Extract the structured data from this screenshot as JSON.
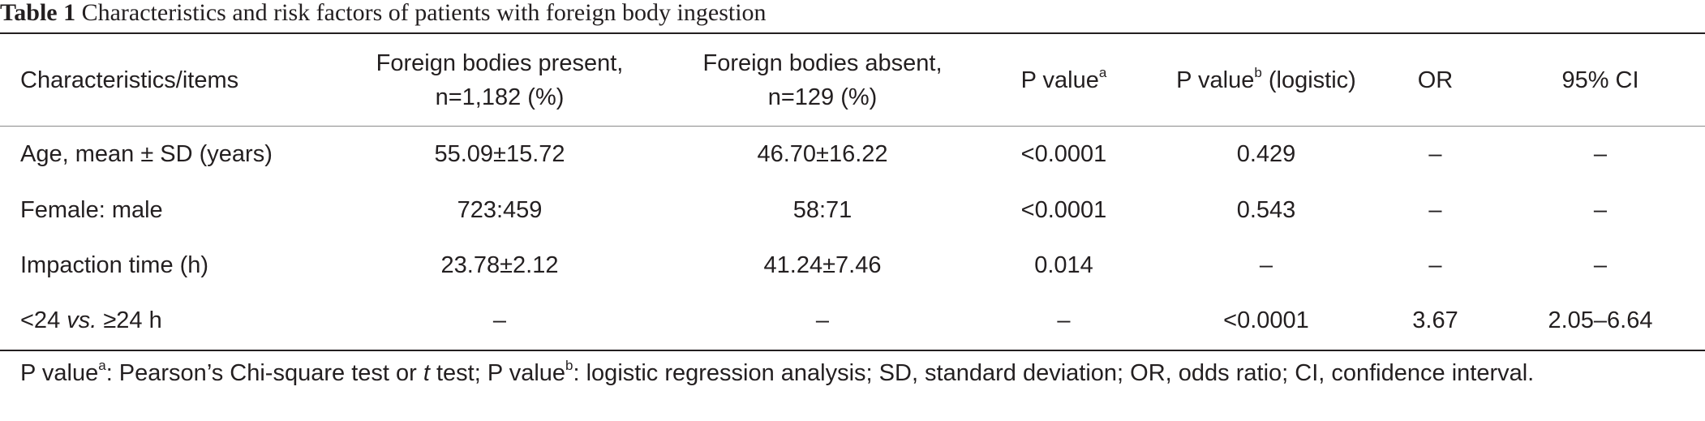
{
  "caption": {
    "label": "Table 1",
    "text": "Characteristics and risk factors of patients with foreign body ingestion"
  },
  "table": {
    "headers": {
      "items": "Characteristics/items",
      "present_line1": "Foreign bodies present,",
      "present_line2": "n=1,182 (%)",
      "absent_line1": "Foreign bodies absent,",
      "absent_line2": "n=129 (%)",
      "pvalue_a": "P value",
      "pvalue_a_sup": "a",
      "pvalue_b": "P value",
      "pvalue_b_sup": "b",
      "pvalue_b_suffix": " (logistic)",
      "or": "OR",
      "ci": "95% CI"
    },
    "rows": [
      {
        "item": "Age, mean ± SD (years)",
        "present": "55.09±15.72",
        "absent": "46.70±16.22",
        "p_a": "<0.0001",
        "p_b": "0.429",
        "or": "–",
        "ci": "–"
      },
      {
        "item": "Female: male",
        "present": "723:459",
        "absent": "58:71",
        "p_a": "<0.0001",
        "p_b": "0.543",
        "or": "–",
        "ci": "–"
      },
      {
        "item": "Impaction time (h)",
        "present": "23.78±2.12",
        "absent": "41.24±7.46",
        "p_a": "0.014",
        "p_b": "–",
        "or": "–",
        "ci": "–"
      },
      {
        "item_pre": "<24 ",
        "item_vs": "vs.",
        "item_post": " ≥24 h",
        "present": "–",
        "absent": "–",
        "p_a": "–",
        "p_b": "<0.0001",
        "or": "3.67",
        "ci": "2.05–6.64"
      }
    ]
  },
  "footnote": {
    "p1": "P value",
    "p1_sup": "a",
    "p1_text": ": Pearson’s Chi-square test or ",
    "t_italic": "t",
    "p1_text2": " test; P value",
    "p2_sup": "b",
    "p2_text": ": logistic regression analysis; SD, standard deviation; OR, odds ratio; CI, confidence interval."
  }
}
